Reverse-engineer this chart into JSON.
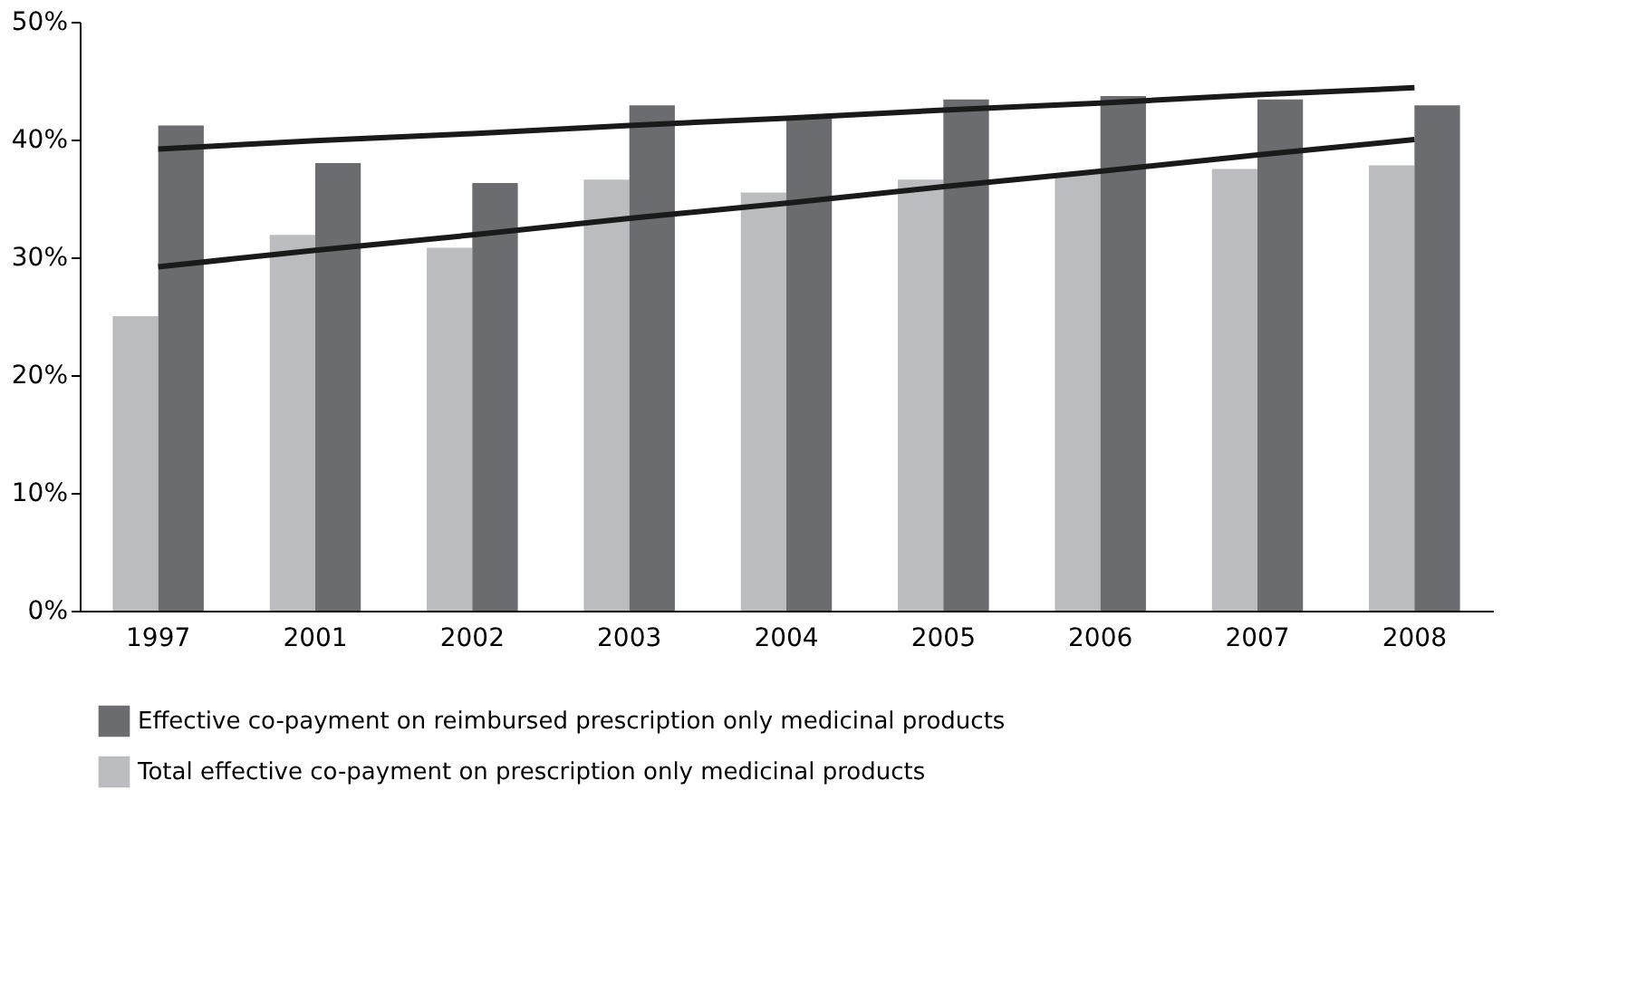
{
  "chart_data": {
    "type": "bar",
    "categories": [
      "1997",
      "2001",
      "2002",
      "2003",
      "2004",
      "2005",
      "2006",
      "2007",
      "2008"
    ],
    "series": [
      {
        "name": "Total effective co-payment on prescription only medicinal products",
        "color": "#bbbcc0",
        "values": [
          25.0,
          31.9,
          30.8,
          36.6,
          35.5,
          36.6,
          37.1,
          37.5,
          37.8
        ]
      },
      {
        "name": "Effective co-payment on reimbursed prescription only medicinal products",
        "color": "#6b6c70",
        "values": [
          41.2,
          38.0,
          36.3,
          42.9,
          41.9,
          43.4,
          43.7,
          43.4,
          42.9
        ]
      },
      {
        "type": "line",
        "color": "#1a1a1a",
        "values": [
          39.2,
          39.9,
          40.5,
          41.2,
          41.8,
          42.5,
          43.1,
          43.8,
          44.4
        ]
      },
      {
        "type": "line",
        "color": "#1a1a1a",
        "values": [
          29.2,
          30.6,
          31.9,
          33.3,
          34.6,
          36.0,
          37.3,
          38.7,
          40.0
        ]
      }
    ],
    "ylim": [
      0,
      50
    ],
    "yticks": [
      {
        "value": 0,
        "label": "0%"
      },
      {
        "value": 10,
        "label": "10%"
      },
      {
        "value": 20,
        "label": "20%"
      },
      {
        "value": 30,
        "label": "30%"
      },
      {
        "value": 40,
        "label": "40%"
      },
      {
        "value": 50,
        "label": "50%"
      }
    ],
    "grid": false,
    "legend": "bottom"
  }
}
